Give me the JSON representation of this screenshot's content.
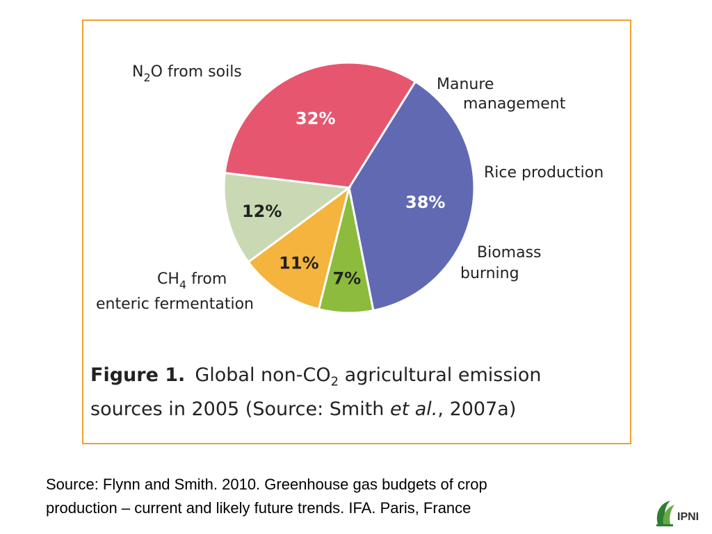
{
  "chart_data": {
    "type": "pie",
    "slices": [
      {
        "label_main": "N",
        "label_sub": "2",
        "label_rest": "O from soils",
        "line2": "",
        "value": 38,
        "value_label": "38%",
        "color": "#6169b3"
      },
      {
        "label_main": "Manure",
        "label_sub": "",
        "label_rest": "",
        "line2": "management",
        "value": 7,
        "value_label": "7%",
        "color": "#8dbb3e"
      },
      {
        "label_main": "Rice production",
        "label_sub": "",
        "label_rest": "",
        "line2": "",
        "value": 11,
        "value_label": "11%",
        "color": "#f5b43d"
      },
      {
        "label_main": "Biomass",
        "label_sub": "",
        "label_rest": "",
        "line2": "burning",
        "value": 12,
        "value_label": "12%",
        "color": "#c9d9b4"
      },
      {
        "label_main": "CH",
        "label_sub": "4",
        "label_rest": " from",
        "line2": "enteric fermentation",
        "value": 32,
        "value_label": "32%",
        "color": "#e6566f"
      }
    ]
  },
  "caption": {
    "figure_number": "Figure 1.",
    "line1_a": "Global non-CO",
    "line1_sub": "2",
    "line1_b": " agricultural emission",
    "line2_a": "sources in 2005 (Source: Smith ",
    "line2_italic": "et al.",
    "line2_b": ", 2007a)"
  },
  "source_note": {
    "line1": "Source: Flynn and Smith. 2010. Greenhouse gas budgets of crop",
    "line2": "production – current and likely future trends. IFA. Paris, France"
  },
  "logo": {
    "text": "IPNI",
    "icon": "ipni-leaf-logo",
    "color": "#2e7d32"
  }
}
